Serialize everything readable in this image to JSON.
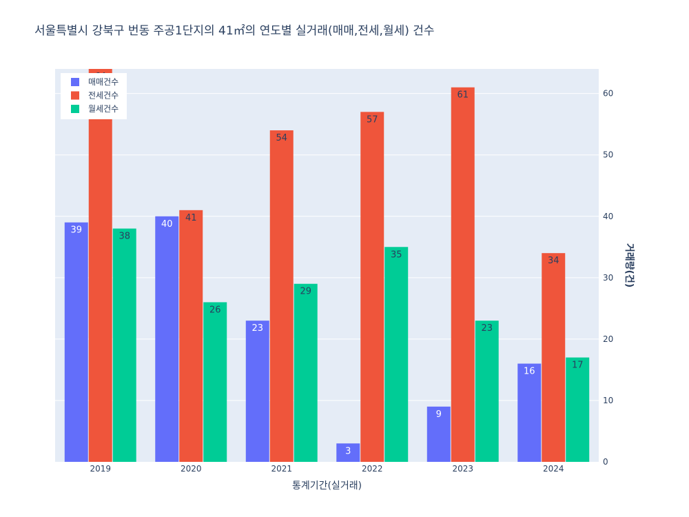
{
  "chart_data": {
    "type": "bar",
    "title": "서울특별시 강북구 번동 주공1단지의 41㎡의 연도별 실거래(매매,전세,월세) 건수",
    "xlabel": "통계기간(실거래)",
    "ylabel": "거래량(건)",
    "categories": [
      "2019",
      "2020",
      "2021",
      "2022",
      "2023",
      "2024"
    ],
    "ylim": [
      0,
      64
    ],
    "yticks": [
      0,
      10,
      20,
      30,
      40,
      50,
      60
    ],
    "yaxis_side": "right",
    "grid": true,
    "legend_position": "top-left",
    "series": [
      {
        "name": "매매건수",
        "color": "#636efa",
        "label_color": "#ffffff",
        "values": [
          39,
          40,
          23,
          3,
          9,
          16
        ]
      },
      {
        "name": "전세건수",
        "color": "#ef553b",
        "label_color": "#2a3f5f",
        "values": [
          64,
          41,
          54,
          57,
          61,
          34
        ]
      },
      {
        "name": "월세건수",
        "color": "#00cc96",
        "label_color": "#2a3f5f",
        "values": [
          38,
          26,
          29,
          35,
          23,
          17
        ]
      }
    ]
  }
}
